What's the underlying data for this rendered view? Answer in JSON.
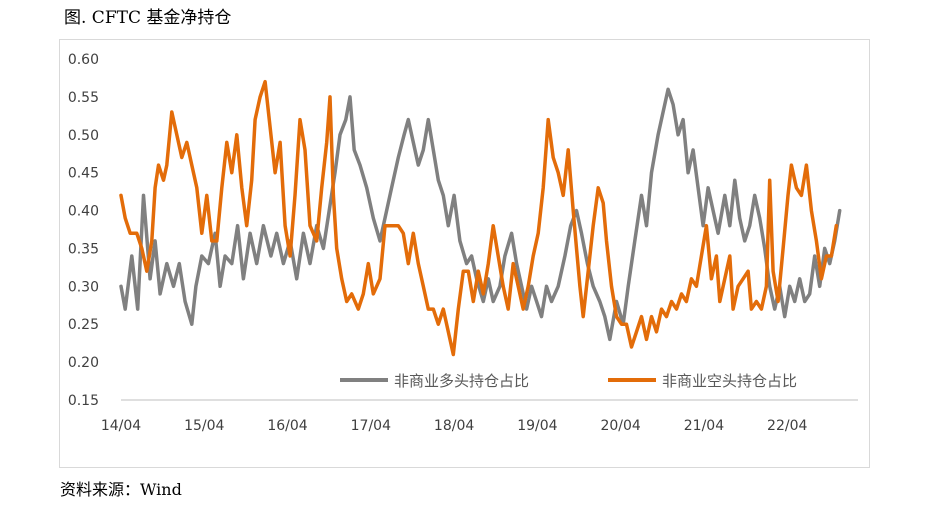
{
  "figure": {
    "title": "图. CFTC 基金净持仓",
    "source": "资料来源：Wind"
  },
  "chart_data": {
    "type": "line",
    "ylim": [
      0.15,
      0.6
    ],
    "yticks": [
      "0.60",
      "0.55",
      "0.50",
      "0.45",
      "0.40",
      "0.35",
      "0.30",
      "0.25",
      "0.20",
      "0.15"
    ],
    "xticks": [
      "14/04",
      "15/04",
      "16/04",
      "17/04",
      "18/04",
      "19/04",
      "20/04",
      "21/04",
      "22/04"
    ],
    "xrange": [
      2014.25,
      2023.1
    ],
    "legend_position": "bottom-right",
    "series": [
      {
        "name": "非商业多头持仓占比",
        "color": "#808080",
        "points": [
          [
            2014.25,
            0.3
          ],
          [
            2014.3,
            0.27
          ],
          [
            2014.38,
            0.34
          ],
          [
            2014.45,
            0.27
          ],
          [
            2014.52,
            0.42
          ],
          [
            2014.6,
            0.31
          ],
          [
            2014.66,
            0.36
          ],
          [
            2014.72,
            0.29
          ],
          [
            2014.8,
            0.33
          ],
          [
            2014.88,
            0.3
          ],
          [
            2014.95,
            0.33
          ],
          [
            2015.02,
            0.28
          ],
          [
            2015.1,
            0.25
          ],
          [
            2015.15,
            0.3
          ],
          [
            2015.22,
            0.34
          ],
          [
            2015.3,
            0.33
          ],
          [
            2015.38,
            0.37
          ],
          [
            2015.44,
            0.3
          ],
          [
            2015.5,
            0.34
          ],
          [
            2015.58,
            0.33
          ],
          [
            2015.65,
            0.38
          ],
          [
            2015.72,
            0.31
          ],
          [
            2015.8,
            0.37
          ],
          [
            2015.88,
            0.33
          ],
          [
            2015.96,
            0.38
          ],
          [
            2016.05,
            0.34
          ],
          [
            2016.12,
            0.37
          ],
          [
            2016.2,
            0.33
          ],
          [
            2016.28,
            0.36
          ],
          [
            2016.36,
            0.31
          ],
          [
            2016.44,
            0.37
          ],
          [
            2016.52,
            0.33
          ],
          [
            2016.6,
            0.38
          ],
          [
            2016.68,
            0.35
          ],
          [
            2016.75,
            0.4
          ],
          [
            2016.82,
            0.45
          ],
          [
            2016.88,
            0.5
          ],
          [
            2016.95,
            0.52
          ],
          [
            2017.0,
            0.55
          ],
          [
            2017.05,
            0.48
          ],
          [
            2017.12,
            0.46
          ],
          [
            2017.2,
            0.43
          ],
          [
            2017.28,
            0.39
          ],
          [
            2017.36,
            0.36
          ],
          [
            2017.42,
            0.39
          ],
          [
            2017.5,
            0.43
          ],
          [
            2017.58,
            0.47
          ],
          [
            2017.65,
            0.5
          ],
          [
            2017.7,
            0.52
          ],
          [
            2017.76,
            0.49
          ],
          [
            2017.82,
            0.46
          ],
          [
            2017.88,
            0.48
          ],
          [
            2017.94,
            0.52
          ],
          [
            2018.0,
            0.48
          ],
          [
            2018.06,
            0.44
          ],
          [
            2018.12,
            0.42
          ],
          [
            2018.18,
            0.38
          ],
          [
            2018.25,
            0.42
          ],
          [
            2018.32,
            0.36
          ],
          [
            2018.4,
            0.33
          ],
          [
            2018.46,
            0.34
          ],
          [
            2018.52,
            0.31
          ],
          [
            2018.6,
            0.28
          ],
          [
            2018.66,
            0.31
          ],
          [
            2018.72,
            0.28
          ],
          [
            2018.8,
            0.3
          ],
          [
            2018.86,
            0.34
          ],
          [
            2018.94,
            0.37
          ],
          [
            2019.0,
            0.33
          ],
          [
            2019.06,
            0.3
          ],
          [
            2019.12,
            0.27
          ],
          [
            2019.18,
            0.3
          ],
          [
            2019.24,
            0.28
          ],
          [
            2019.3,
            0.26
          ],
          [
            2019.36,
            0.3
          ],
          [
            2019.42,
            0.28
          ],
          [
            2019.5,
            0.3
          ],
          [
            2019.58,
            0.34
          ],
          [
            2019.65,
            0.38
          ],
          [
            2019.72,
            0.4
          ],
          [
            2019.78,
            0.37
          ],
          [
            2019.85,
            0.33
          ],
          [
            2019.92,
            0.3
          ],
          [
            2020.0,
            0.28
          ],
          [
            2020.06,
            0.26
          ],
          [
            2020.12,
            0.23
          ],
          [
            2020.2,
            0.28
          ],
          [
            2020.28,
            0.25
          ],
          [
            2020.34,
            0.3
          ],
          [
            2020.42,
            0.36
          ],
          [
            2020.5,
            0.42
          ],
          [
            2020.56,
            0.38
          ],
          [
            2020.62,
            0.45
          ],
          [
            2020.7,
            0.5
          ],
          [
            2020.76,
            0.53
          ],
          [
            2020.82,
            0.56
          ],
          [
            2020.88,
            0.54
          ],
          [
            2020.94,
            0.5
          ],
          [
            2021.0,
            0.52
          ],
          [
            2021.06,
            0.45
          ],
          [
            2021.12,
            0.48
          ],
          [
            2021.18,
            0.43
          ],
          [
            2021.24,
            0.38
          ],
          [
            2021.3,
            0.43
          ],
          [
            2021.36,
            0.4
          ],
          [
            2021.42,
            0.37
          ],
          [
            2021.5,
            0.42
          ],
          [
            2021.56,
            0.38
          ],
          [
            2021.62,
            0.44
          ],
          [
            2021.68,
            0.39
          ],
          [
            2021.74,
            0.36
          ],
          [
            2021.8,
            0.38
          ],
          [
            2021.86,
            0.42
          ],
          [
            2021.92,
            0.39
          ],
          [
            2021.98,
            0.35
          ],
          [
            2022.04,
            0.3
          ],
          [
            2022.1,
            0.27
          ],
          [
            2022.16,
            0.3
          ],
          [
            2022.22,
            0.26
          ],
          [
            2022.28,
            0.3
          ],
          [
            2022.34,
            0.28
          ],
          [
            2022.4,
            0.31
          ],
          [
            2022.46,
            0.28
          ],
          [
            2022.52,
            0.29
          ],
          [
            2022.58,
            0.34
          ],
          [
            2022.64,
            0.3
          ],
          [
            2022.7,
            0.35
          ],
          [
            2022.76,
            0.33
          ],
          [
            2022.82,
            0.36
          ],
          [
            2022.88,
            0.4
          ]
        ]
      },
      {
        "name": "非商业空头持仓占比",
        "color": "#e36c09",
        "points": [
          [
            2014.25,
            0.42
          ],
          [
            2014.3,
            0.39
          ],
          [
            2014.36,
            0.37
          ],
          [
            2014.44,
            0.37
          ],
          [
            2014.5,
            0.35
          ],
          [
            2014.56,
            0.32
          ],
          [
            2014.62,
            0.36
          ],
          [
            2014.66,
            0.43
          ],
          [
            2014.7,
            0.46
          ],
          [
            2014.76,
            0.44
          ],
          [
            2014.8,
            0.46
          ],
          [
            2014.86,
            0.53
          ],
          [
            2014.92,
            0.5
          ],
          [
            2014.98,
            0.47
          ],
          [
            2015.04,
            0.49
          ],
          [
            2015.1,
            0.46
          ],
          [
            2015.16,
            0.43
          ],
          [
            2015.22,
            0.37
          ],
          [
            2015.28,
            0.42
          ],
          [
            2015.34,
            0.36
          ],
          [
            2015.4,
            0.36
          ],
          [
            2015.46,
            0.43
          ],
          [
            2015.52,
            0.49
          ],
          [
            2015.58,
            0.45
          ],
          [
            2015.64,
            0.5
          ],
          [
            2015.7,
            0.43
          ],
          [
            2015.76,
            0.38
          ],
          [
            2015.82,
            0.44
          ],
          [
            2015.86,
            0.52
          ],
          [
            2015.92,
            0.55
          ],
          [
            2015.98,
            0.57
          ],
          [
            2016.04,
            0.51
          ],
          [
            2016.1,
            0.45
          ],
          [
            2016.16,
            0.49
          ],
          [
            2016.22,
            0.38
          ],
          [
            2016.28,
            0.34
          ],
          [
            2016.34,
            0.42
          ],
          [
            2016.4,
            0.52
          ],
          [
            2016.46,
            0.48
          ],
          [
            2016.52,
            0.38
          ],
          [
            2016.6,
            0.36
          ],
          [
            2016.66,
            0.43
          ],
          [
            2016.72,
            0.49
          ],
          [
            2016.76,
            0.55
          ],
          [
            2016.8,
            0.42
          ],
          [
            2016.84,
            0.35
          ],
          [
            2016.9,
            0.31
          ],
          [
            2016.96,
            0.28
          ],
          [
            2017.02,
            0.29
          ],
          [
            2017.1,
            0.27
          ],
          [
            2017.16,
            0.29
          ],
          [
            2017.22,
            0.33
          ],
          [
            2017.28,
            0.29
          ],
          [
            2017.36,
            0.31
          ],
          [
            2017.42,
            0.38
          ],
          [
            2017.5,
            0.38
          ],
          [
            2017.58,
            0.38
          ],
          [
            2017.64,
            0.37
          ],
          [
            2017.7,
            0.33
          ],
          [
            2017.76,
            0.37
          ],
          [
            2017.82,
            0.33
          ],
          [
            2017.88,
            0.3
          ],
          [
            2017.94,
            0.27
          ],
          [
            2018.0,
            0.27
          ],
          [
            2018.06,
            0.25
          ],
          [
            2018.12,
            0.27
          ],
          [
            2018.18,
            0.24
          ],
          [
            2018.24,
            0.21
          ],
          [
            2018.3,
            0.27
          ],
          [
            2018.36,
            0.32
          ],
          [
            2018.42,
            0.32
          ],
          [
            2018.48,
            0.28
          ],
          [
            2018.54,
            0.32
          ],
          [
            2018.6,
            0.29
          ],
          [
            2018.66,
            0.33
          ],
          [
            2018.72,
            0.38
          ],
          [
            2018.78,
            0.34
          ],
          [
            2018.84,
            0.3
          ],
          [
            2018.9,
            0.27
          ],
          [
            2018.96,
            0.33
          ],
          [
            2019.02,
            0.3
          ],
          [
            2019.08,
            0.27
          ],
          [
            2019.14,
            0.3
          ],
          [
            2019.2,
            0.34
          ],
          [
            2019.26,
            0.37
          ],
          [
            2019.32,
            0.43
          ],
          [
            2019.38,
            0.52
          ],
          [
            2019.44,
            0.47
          ],
          [
            2019.5,
            0.45
          ],
          [
            2019.56,
            0.42
          ],
          [
            2019.62,
            0.48
          ],
          [
            2019.68,
            0.4
          ],
          [
            2019.72,
            0.35
          ],
          [
            2019.76,
            0.3
          ],
          [
            2019.8,
            0.26
          ],
          [
            2019.86,
            0.32
          ],
          [
            2019.92,
            0.38
          ],
          [
            2019.98,
            0.43
          ],
          [
            2020.04,
            0.41
          ],
          [
            2020.08,
            0.36
          ],
          [
            2020.14,
            0.3
          ],
          [
            2020.2,
            0.26
          ],
          [
            2020.26,
            0.25
          ],
          [
            2020.32,
            0.25
          ],
          [
            2020.38,
            0.22
          ],
          [
            2020.44,
            0.24
          ],
          [
            2020.5,
            0.26
          ],
          [
            2020.56,
            0.23
          ],
          [
            2020.62,
            0.26
          ],
          [
            2020.68,
            0.24
          ],
          [
            2020.74,
            0.27
          ],
          [
            2020.8,
            0.26
          ],
          [
            2020.86,
            0.28
          ],
          [
            2020.92,
            0.27
          ],
          [
            2020.98,
            0.29
          ],
          [
            2021.04,
            0.28
          ],
          [
            2021.1,
            0.31
          ],
          [
            2021.16,
            0.3
          ],
          [
            2021.22,
            0.34
          ],
          [
            2021.28,
            0.38
          ],
          [
            2021.34,
            0.31
          ],
          [
            2021.4,
            0.34
          ],
          [
            2021.44,
            0.28
          ],
          [
            2021.5,
            0.31
          ],
          [
            2021.56,
            0.34
          ],
          [
            2021.6,
            0.27
          ],
          [
            2021.66,
            0.3
          ],
          [
            2021.72,
            0.31
          ],
          [
            2021.78,
            0.32
          ],
          [
            2021.82,
            0.27
          ],
          [
            2021.88,
            0.28
          ],
          [
            2021.94,
            0.27
          ],
          [
            2022.0,
            0.3
          ],
          [
            2022.04,
            0.44
          ],
          [
            2022.08,
            0.32
          ],
          [
            2022.14,
            0.28
          ],
          [
            2022.2,
            0.35
          ],
          [
            2022.26,
            0.42
          ],
          [
            2022.3,
            0.46
          ],
          [
            2022.36,
            0.43
          ],
          [
            2022.42,
            0.42
          ],
          [
            2022.48,
            0.46
          ],
          [
            2022.54,
            0.4
          ],
          [
            2022.6,
            0.36
          ],
          [
            2022.66,
            0.31
          ],
          [
            2022.72,
            0.34
          ],
          [
            2022.78,
            0.34
          ],
          [
            2022.84,
            0.38
          ]
        ]
      }
    ]
  }
}
